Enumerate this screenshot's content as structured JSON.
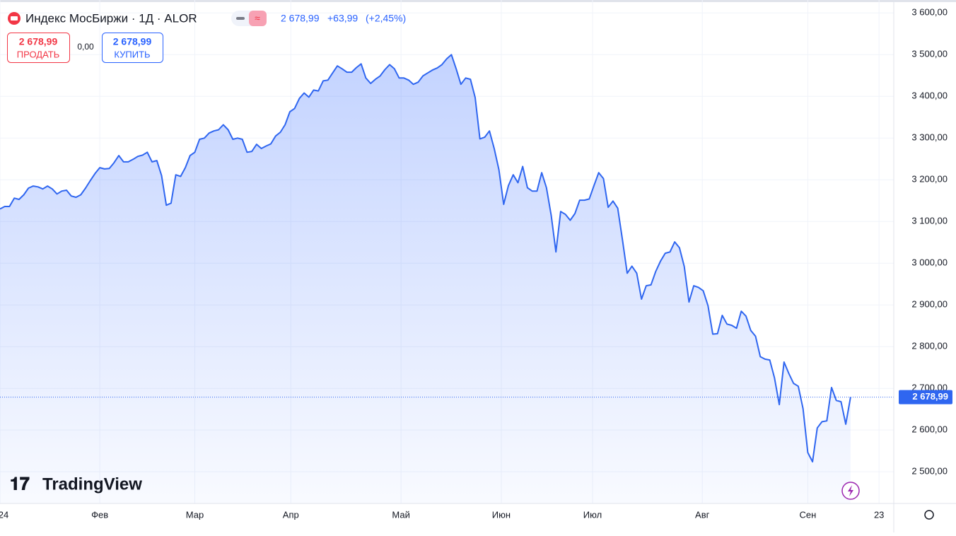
{
  "header": {
    "symbol": "Индекс МосБиржи · 1Д · ALOR",
    "price": "2 678,99",
    "change": "+63,99",
    "change_pct": "(+2,45%)",
    "sell_price": "2 678,99",
    "sell_label": "ПРОДАТЬ",
    "spread": "0,00",
    "buy_price": "2 678,99",
    "buy_label": "КУПИТЬ",
    "logo": "TradingView"
  },
  "chart_data": {
    "type": "area",
    "color": "#2f66f0",
    "values": [
      3130,
      3136,
      3136,
      3156,
      3153,
      3164,
      3180,
      3185,
      3183,
      3178,
      3185,
      3178,
      3166,
      3173,
      3175,
      3161,
      3158,
      3164,
      3180,
      3198,
      3215,
      3229,
      3226,
      3227,
      3241,
      3258,
      3243,
      3243,
      3249,
      3256,
      3259,
      3266,
      3243,
      3246,
      3210,
      3139,
      3144,
      3212,
      3208,
      3229,
      3258,
      3266,
      3297,
      3300,
      3312,
      3317,
      3320,
      3332,
      3320,
      3297,
      3300,
      3297,
      3266,
      3268,
      3285,
      3275,
      3281,
      3286,
      3305,
      3314,
      3332,
      3363,
      3371,
      3395,
      3408,
      3398,
      3415,
      3413,
      3437,
      3439,
      3456,
      3473,
      3466,
      3458,
      3458,
      3469,
      3478,
      3444,
      3431,
      3441,
      3449,
      3464,
      3476,
      3466,
      3444,
      3444,
      3439,
      3429,
      3434,
      3449,
      3456,
      3463,
      3468,
      3476,
      3490,
      3500,
      3466,
      3429,
      3444,
      3441,
      3397,
      3298,
      3302,
      3317,
      3275,
      3224,
      3141,
      3186,
      3212,
      3193,
      3232,
      3181,
      3173,
      3173,
      3217,
      3181,
      3115,
      3027,
      3124,
      3117,
      3103,
      3119,
      3151,
      3151,
      3154,
      3186,
      3217,
      3203,
      3134,
      3149,
      3132,
      3056,
      2976,
      2993,
      2976,
      2914,
      2946,
      2948,
      2980,
      3005,
      3024,
      3027,
      3051,
      3037,
      2992,
      2907,
      2946,
      2942,
      2934,
      2898,
      2830,
      2831,
      2875,
      2854,
      2851,
      2844,
      2885,
      2873,
      2839,
      2825,
      2776,
      2770,
      2768,
      2725,
      2661,
      2763,
      2736,
      2712,
      2705,
      2651,
      2546,
      2524,
      2605,
      2620,
      2622,
      2702,
      2671,
      2668,
      2614,
      2679
    ],
    "last_value": {
      "value": 2678.99,
      "label": "2 678,99"
    },
    "xlim": [
      0,
      187.8
    ],
    "xticks": [
      {
        "value": 0,
        "label": "24"
      },
      {
        "value": 21,
        "label": "Фев"
      },
      {
        "value": 41,
        "label": "Мар"
      },
      {
        "value": 61.2,
        "label": "Апр"
      },
      {
        "value": 84.4,
        "label": "Май"
      },
      {
        "value": 105.5,
        "label": "Июн"
      },
      {
        "value": 124.7,
        "label": "Июл"
      },
      {
        "value": 147.8,
        "label": "Авг"
      },
      {
        "value": 170,
        "label": "Сен"
      },
      {
        "value": 185,
        "label": "23"
      }
    ],
    "ylim": [
      2424,
      3631
    ],
    "yticks": [
      {
        "value": 2500,
        "label": "2 500,00"
      },
      {
        "value": 2600,
        "label": "2 600,00"
      },
      {
        "value": 2700,
        "label": "2 700,00"
      },
      {
        "value": 2800,
        "label": "2 800,00"
      },
      {
        "value": 2900,
        "label": "2 900,00"
      },
      {
        "value": 3000,
        "label": "3 000,00"
      },
      {
        "value": 3100,
        "label": "3 100,00"
      },
      {
        "value": 3200,
        "label": "3 200,00"
      },
      {
        "value": 3300,
        "label": "3 300,00"
      },
      {
        "value": 3400,
        "label": "3 400,00"
      },
      {
        "value": 3500,
        "label": "3 500,00"
      },
      {
        "value": 3600,
        "label": "3 600,00"
      }
    ],
    "grid": true
  }
}
